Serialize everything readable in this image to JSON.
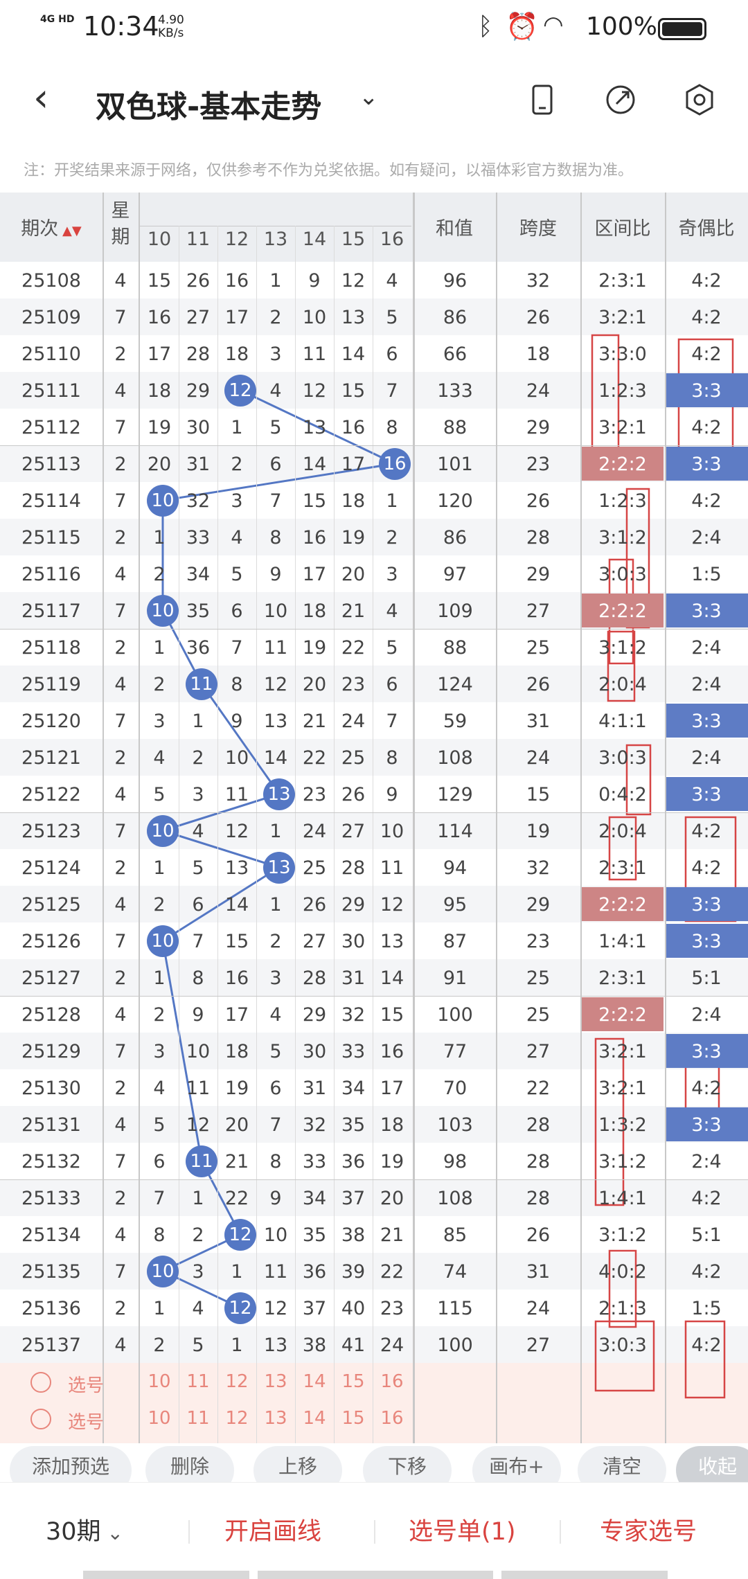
{
  "status": {
    "network": "4G HD",
    "time": "10:34",
    "speed_value": "4.90",
    "speed_unit": "KB/s",
    "battery": "100%"
  },
  "header": {
    "title": "双色球-基本走势",
    "back_icon": "back-arrow-icon",
    "icons": [
      "phone-icon",
      "share-icon",
      "settings-icon"
    ]
  },
  "notice": "注：开奖结果来源于网络，仅供参考不作为兑奖依据。如有疑问，以福体彩官方数据为准。",
  "columns": {
    "issue": "期次",
    "week": "星期",
    "nums": [
      "10",
      "11",
      "12",
      "13",
      "14",
      "15",
      "16"
    ],
    "sum": "和值",
    "span": "跨度",
    "zone": "区间比",
    "odd": "奇偶比"
  },
  "rows": [
    {
      "issue": "25108",
      "week": "4",
      "nums": [
        "15",
        "26",
        "16",
        "1",
        "9",
        "12",
        "4"
      ],
      "sum": "96",
      "span": "32",
      "zone": "2:3:1",
      "odd": "4:2"
    },
    {
      "issue": "25109",
      "week": "7",
      "nums": [
        "16",
        "27",
        "17",
        "2",
        "10",
        "13",
        "5"
      ],
      "sum": "86",
      "span": "26",
      "zone": "3:2:1",
      "odd": "4:2"
    },
    {
      "issue": "25110",
      "week": "2",
      "nums": [
        "17",
        "28",
        "18",
        "3",
        "11",
        "14",
        "6"
      ],
      "sum": "66",
      "span": "18",
      "zone": "3:3:0",
      "odd": "4:2"
    },
    {
      "issue": "25111",
      "week": "4",
      "nums": [
        "18",
        "29",
        "12",
        "4",
        "12",
        "15",
        "7"
      ],
      "sum": "133",
      "span": "24",
      "zone": "1:2:3",
      "odd": "3:3",
      "ball": 2,
      "oddhl": true
    },
    {
      "issue": "25112",
      "week": "7",
      "nums": [
        "19",
        "30",
        "1",
        "5",
        "13",
        "16",
        "8"
      ],
      "sum": "88",
      "span": "29",
      "zone": "3:2:1",
      "odd": "4:2"
    },
    {
      "issue": "25113",
      "week": "2",
      "nums": [
        "20",
        "31",
        "2",
        "6",
        "14",
        "17",
        "16"
      ],
      "sum": "101",
      "span": "23",
      "zone": "2:2:2",
      "odd": "3:3",
      "ball": 6,
      "zonehl": true,
      "oddhl": true
    },
    {
      "issue": "25114",
      "week": "7",
      "nums": [
        "10",
        "32",
        "3",
        "7",
        "15",
        "18",
        "1"
      ],
      "sum": "120",
      "span": "26",
      "zone": "1:2:3",
      "odd": "4:2",
      "ball": 0
    },
    {
      "issue": "25115",
      "week": "2",
      "nums": [
        "1",
        "33",
        "4",
        "8",
        "16",
        "19",
        "2"
      ],
      "sum": "86",
      "span": "28",
      "zone": "3:1:2",
      "odd": "2:4"
    },
    {
      "issue": "25116",
      "week": "4",
      "nums": [
        "2",
        "34",
        "5",
        "9",
        "17",
        "20",
        "3"
      ],
      "sum": "97",
      "span": "29",
      "zone": "3:0:3",
      "odd": "1:5"
    },
    {
      "issue": "25117",
      "week": "7",
      "nums": [
        "10",
        "35",
        "6",
        "10",
        "18",
        "21",
        "4"
      ],
      "sum": "109",
      "span": "27",
      "zone": "2:2:2",
      "odd": "3:3",
      "ball": 0,
      "zonehl": true,
      "oddhl": true
    },
    {
      "issue": "25118",
      "week": "2",
      "nums": [
        "1",
        "36",
        "7",
        "11",
        "19",
        "22",
        "5"
      ],
      "sum": "88",
      "span": "25",
      "zone": "3:1:2",
      "odd": "2:4"
    },
    {
      "issue": "25119",
      "week": "4",
      "nums": [
        "2",
        "11",
        "8",
        "12",
        "20",
        "23",
        "6"
      ],
      "sum": "124",
      "span": "26",
      "zone": "2:0:4",
      "odd": "2:4",
      "ball": 1
    },
    {
      "issue": "25120",
      "week": "7",
      "nums": [
        "3",
        "1",
        "9",
        "13",
        "21",
        "24",
        "7"
      ],
      "sum": "59",
      "span": "31",
      "zone": "4:1:1",
      "odd": "3:3",
      "oddhl": true
    },
    {
      "issue": "25121",
      "week": "2",
      "nums": [
        "4",
        "2",
        "10",
        "14",
        "22",
        "25",
        "8"
      ],
      "sum": "108",
      "span": "24",
      "zone": "3:0:3",
      "odd": "2:4"
    },
    {
      "issue": "25122",
      "week": "4",
      "nums": [
        "5",
        "3",
        "11",
        "13",
        "23",
        "26",
        "9"
      ],
      "sum": "129",
      "span": "15",
      "zone": "0:4:2",
      "odd": "3:3",
      "ball": 3,
      "oddhl": true
    },
    {
      "issue": "25123",
      "week": "7",
      "nums": [
        "10",
        "4",
        "12",
        "1",
        "24",
        "27",
        "10"
      ],
      "sum": "114",
      "span": "19",
      "zone": "2:0:4",
      "odd": "4:2",
      "ball": 0
    },
    {
      "issue": "25124",
      "week": "2",
      "nums": [
        "1",
        "5",
        "13",
        "13",
        "25",
        "28",
        "11"
      ],
      "sum": "94",
      "span": "32",
      "zone": "2:3:1",
      "odd": "4:2",
      "ball": 3
    },
    {
      "issue": "25125",
      "week": "4",
      "nums": [
        "2",
        "6",
        "14",
        "1",
        "26",
        "29",
        "12"
      ],
      "sum": "95",
      "span": "29",
      "zone": "2:2:2",
      "odd": "3:3",
      "zonehl": true,
      "oddhl": true
    },
    {
      "issue": "25126",
      "week": "7",
      "nums": [
        "10",
        "7",
        "15",
        "2",
        "27",
        "30",
        "13"
      ],
      "sum": "87",
      "span": "23",
      "zone": "1:4:1",
      "odd": "3:3",
      "ball": 0,
      "oddhl": true
    },
    {
      "issue": "25127",
      "week": "2",
      "nums": [
        "1",
        "8",
        "16",
        "3",
        "28",
        "31",
        "14"
      ],
      "sum": "91",
      "span": "25",
      "zone": "2:3:1",
      "odd": "5:1"
    },
    {
      "issue": "25128",
      "week": "4",
      "nums": [
        "2",
        "9",
        "17",
        "4",
        "29",
        "32",
        "15"
      ],
      "sum": "100",
      "span": "25",
      "zone": "2:2:2",
      "odd": "2:4",
      "zonehl": true
    },
    {
      "issue": "25129",
      "week": "7",
      "nums": [
        "3",
        "10",
        "18",
        "5",
        "30",
        "33",
        "16"
      ],
      "sum": "77",
      "span": "27",
      "zone": "3:2:1",
      "odd": "3:3",
      "oddhl": true
    },
    {
      "issue": "25130",
      "week": "2",
      "nums": [
        "4",
        "11",
        "19",
        "6",
        "31",
        "34",
        "17"
      ],
      "sum": "70",
      "span": "22",
      "zone": "3:2:1",
      "odd": "4:2"
    },
    {
      "issue": "25131",
      "week": "4",
      "nums": [
        "5",
        "12",
        "20",
        "7",
        "32",
        "35",
        "18"
      ],
      "sum": "103",
      "span": "28",
      "zone": "1:3:2",
      "odd": "3:3",
      "oddhl": true
    },
    {
      "issue": "25132",
      "week": "7",
      "nums": [
        "6",
        "11",
        "21",
        "8",
        "33",
        "36",
        "19"
      ],
      "sum": "98",
      "span": "28",
      "zone": "3:1:2",
      "odd": "2:4",
      "ball": 1
    },
    {
      "issue": "25133",
      "week": "2",
      "nums": [
        "7",
        "1",
        "22",
        "9",
        "34",
        "37",
        "20"
      ],
      "sum": "108",
      "span": "28",
      "zone": "1:4:1",
      "odd": "4:2"
    },
    {
      "issue": "25134",
      "week": "4",
      "nums": [
        "8",
        "2",
        "12",
        "10",
        "35",
        "38",
        "21"
      ],
      "sum": "85",
      "span": "26",
      "zone": "3:1:2",
      "odd": "5:1",
      "ball": 2
    },
    {
      "issue": "25135",
      "week": "7",
      "nums": [
        "10",
        "3",
        "1",
        "11",
        "36",
        "39",
        "22"
      ],
      "sum": "74",
      "span": "31",
      "zone": "4:0:2",
      "odd": "4:2",
      "ball": 0
    },
    {
      "issue": "25136",
      "week": "2",
      "nums": [
        "1",
        "4",
        "12",
        "12",
        "37",
        "40",
        "23"
      ],
      "sum": "115",
      "span": "24",
      "zone": "2:1:3",
      "odd": "1:5",
      "ball": 2
    },
    {
      "issue": "25137",
      "week": "4",
      "nums": [
        "2",
        "5",
        "1",
        "13",
        "38",
        "41",
        "24"
      ],
      "sum": "100",
      "span": "27",
      "zone": "3:0:3",
      "odd": "4:2"
    }
  ],
  "select_rows": [
    {
      "label": "选号",
      "nums": [
        "10",
        "11",
        "12",
        "13",
        "14",
        "15",
        "16"
      ]
    },
    {
      "label": "选号",
      "nums": [
        "10",
        "11",
        "12",
        "13",
        "14",
        "15",
        "16"
      ]
    }
  ],
  "actions": [
    "添加预选",
    "删除",
    "上移",
    "下移",
    "画布+",
    "清空",
    "收起"
  ],
  "bottom": {
    "period": "30期",
    "draw_line": "开启画线",
    "selection": "选号单(1)",
    "expert": "专家选号"
  },
  "colors": {
    "accent_red": "#d9433f",
    "ball_blue": "#5477c4",
    "zone_highlight": "#cd8585",
    "odd_highlight": "#5e7cc5",
    "select_text": "#e8867c"
  }
}
